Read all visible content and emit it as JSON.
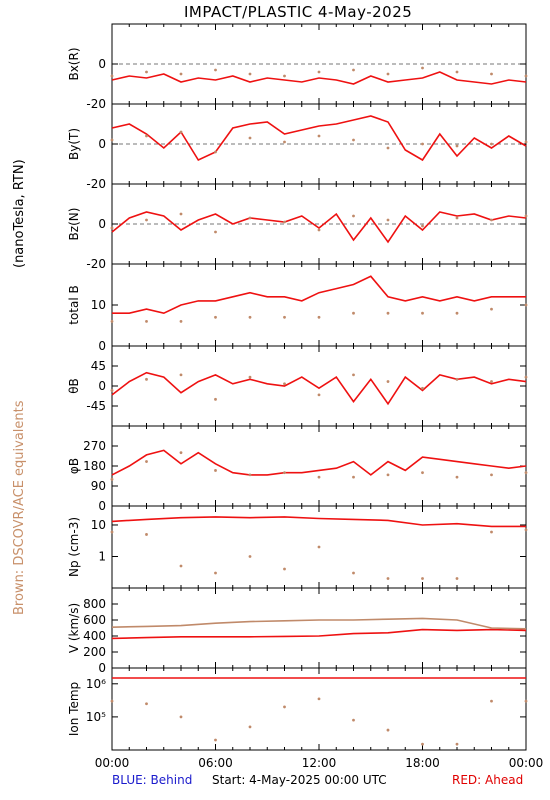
{
  "title": "IMPACT/PLASTIC     4-May-2025",
  "left_axis_label": "(nanoTesla, RTN)",
  "brown_label": "Brown: DSCOVR/ACE equivalents",
  "footer": {
    "behind": "BLUE: Behind",
    "start": "Start:   4-May-2025 00:00 UTC",
    "ahead": "RED: Ahead"
  },
  "colors": {
    "ahead": "#ee1111",
    "brown": "#c08a6a",
    "axis": "#000000",
    "dash": "#777777"
  },
  "chart_data": {
    "type": "line",
    "x_ticks": [
      "00:00",
      "06:00",
      "12:00",
      "18:00",
      "00:00"
    ],
    "panels": [
      {
        "id": "bx",
        "ylabel": "Bx(R)",
        "ylim": [
          -20,
          20
        ],
        "ticks": [
          "0",
          "-20"
        ],
        "tick_values": [
          0,
          -20
        ],
        "zero_line": true,
        "series": [
          {
            "color": "ahead",
            "style": "line",
            "x": [
              0,
              1,
              2,
              3,
              4,
              5,
              6,
              7,
              8,
              9,
              10,
              11,
              12,
              13,
              14,
              15,
              16,
              17,
              18,
              19,
              20,
              21,
              22,
              23,
              24
            ],
            "y": [
              -8,
              -6,
              -7,
              -5,
              -9,
              -7,
              -8,
              -6,
              -9,
              -7,
              -8,
              -9,
              -7,
              -8,
              -10,
              -6,
              -9,
              -8,
              -7,
              -4,
              -8,
              -9,
              -10,
              -8,
              -9
            ]
          },
          {
            "color": "brown",
            "style": "dots",
            "x": [
              0,
              2,
              4,
              6,
              8,
              10,
              12,
              14,
              16,
              18,
              20,
              22,
              24
            ],
            "y": [
              -6,
              -4,
              -5,
              -3,
              -5,
              -6,
              -4,
              -3,
              -5,
              -2,
              -4,
              -5,
              -6
            ]
          }
        ]
      },
      {
        "id": "by",
        "ylabel": "By(T)",
        "ylim": [
          -20,
          20
        ],
        "ticks": [
          "0",
          "-20"
        ],
        "tick_values": [
          0,
          -20
        ],
        "zero_line": true,
        "series": [
          {
            "color": "ahead",
            "style": "line",
            "x": [
              0,
              1,
              2,
              3,
              4,
              5,
              6,
              7,
              8,
              9,
              10,
              11,
              12,
              13,
              14,
              15,
              16,
              17,
              18,
              19,
              20,
              21,
              22,
              23,
              24
            ],
            "y": [
              8,
              10,
              5,
              -2,
              6,
              -8,
              -4,
              8,
              10,
              11,
              5,
              7,
              9,
              10,
              12,
              14,
              11,
              -3,
              -8,
              5,
              -6,
              3,
              -2,
              4,
              -1
            ]
          },
          {
            "color": "brown",
            "style": "dots",
            "x": [
              0,
              2,
              4,
              6,
              8,
              10,
              12,
              14,
              16,
              18,
              20,
              22,
              24
            ],
            "y": [
              2,
              4,
              6,
              -4,
              3,
              1,
              4,
              2,
              -2,
              0,
              -1,
              0,
              1
            ]
          }
        ]
      },
      {
        "id": "bz",
        "ylabel": "Bz(N)",
        "ylim": [
          -20,
          20
        ],
        "ticks": [
          "0",
          "-20"
        ],
        "tick_values": [
          0,
          -20
        ],
        "zero_line": true,
        "series": [
          {
            "color": "ahead",
            "style": "line",
            "x": [
              0,
              1,
              2,
              3,
              4,
              5,
              6,
              7,
              8,
              9,
              10,
              11,
              12,
              13,
              14,
              15,
              16,
              17,
              18,
              19,
              20,
              21,
              22,
              23,
              24
            ],
            "y": [
              -4,
              3,
              6,
              4,
              -3,
              2,
              5,
              0,
              3,
              2,
              1,
              4,
              -2,
              5,
              -8,
              3,
              -9,
              4,
              -3,
              6,
              4,
              5,
              2,
              4,
              3
            ]
          },
          {
            "color": "brown",
            "style": "dots",
            "x": [
              0,
              2,
              4,
              6,
              8,
              10,
              12,
              14,
              16,
              18,
              20,
              22,
              24
            ],
            "y": [
              -2,
              2,
              5,
              -4,
              3,
              1,
              -3,
              4,
              2,
              -1,
              3,
              2,
              4
            ]
          }
        ]
      },
      {
        "id": "bt",
        "ylabel": "total B",
        "ylim": [
          0,
          20
        ],
        "ticks": [
          "10",
          "0"
        ],
        "tick_values": [
          10,
          0
        ],
        "zero_line": false,
        "series": [
          {
            "color": "ahead",
            "style": "line",
            "x": [
              0,
              1,
              2,
              3,
              4,
              5,
              6,
              7,
              8,
              9,
              10,
              11,
              12,
              13,
              14,
              15,
              16,
              17,
              18,
              19,
              20,
              21,
              22,
              23,
              24
            ],
            "y": [
              8,
              8,
              9,
              8,
              10,
              11,
              11,
              12,
              13,
              12,
              12,
              11,
              13,
              14,
              15,
              17,
              12,
              11,
              12,
              11,
              12,
              11,
              12,
              12,
              12
            ]
          },
          {
            "color": "brown",
            "style": "dots",
            "x": [
              0,
              2,
              4,
              6,
              8,
              10,
              12,
              14,
              16,
              18,
              20,
              22,
              24
            ],
            "y": [
              6,
              6,
              6,
              7,
              7,
              7,
              7,
              8,
              8,
              8,
              8,
              9,
              10
            ]
          }
        ]
      },
      {
        "id": "theta",
        "ylabel": "θB",
        "ylim": [
          -90,
          90
        ],
        "ticks": [
          "45",
          "0",
          "-45"
        ],
        "tick_values": [
          45,
          0,
          -45
        ],
        "zero_line": false,
        "series": [
          {
            "color": "ahead",
            "style": "line",
            "x": [
              0,
              1,
              2,
              3,
              4,
              5,
              6,
              7,
              8,
              9,
              10,
              11,
              12,
              13,
              14,
              15,
              16,
              17,
              18,
              19,
              20,
              21,
              22,
              23,
              24
            ],
            "y": [
              -20,
              10,
              30,
              20,
              -15,
              10,
              25,
              5,
              15,
              5,
              0,
              20,
              -5,
              20,
              -35,
              15,
              -40,
              20,
              -10,
              25,
              15,
              20,
              5,
              15,
              10
            ]
          },
          {
            "color": "brown",
            "style": "dots",
            "x": [
              0,
              2,
              4,
              6,
              8,
              10,
              12,
              14,
              16,
              18,
              20,
              22,
              24
            ],
            "y": [
              -10,
              15,
              25,
              -30,
              20,
              5,
              -20,
              25,
              10,
              -5,
              15,
              10,
              20
            ]
          }
        ]
      },
      {
        "id": "phi",
        "ylabel": "φB",
        "ylim": [
          0,
          360
        ],
        "ticks": [
          "270",
          "180",
          "90",
          "0"
        ],
        "tick_values": [
          270,
          180,
          90,
          0
        ],
        "zero_line": false,
        "series": [
          {
            "color": "ahead",
            "style": "line",
            "x": [
              0,
              1,
              2,
              3,
              4,
              5,
              6,
              7,
              8,
              9,
              10,
              11,
              12,
              13,
              14,
              15,
              16,
              17,
              18,
              19,
              20,
              21,
              22,
              23,
              24
            ],
            "y": [
              140,
              180,
              230,
              250,
              190,
              240,
              190,
              150,
              140,
              140,
              150,
              150,
              160,
              170,
              200,
              140,
              200,
              160,
              220,
              210,
              200,
              190,
              180,
              170,
              180
            ]
          },
          {
            "color": "brown",
            "style": "dots",
            "x": [
              0,
              2,
              4,
              6,
              8,
              10,
              12,
              14,
              16,
              18,
              20,
              22,
              24
            ],
            "y": [
              120,
              200,
              240,
              160,
              140,
              150,
              130,
              130,
              140,
              150,
              130,
              140,
              150
            ]
          }
        ]
      },
      {
        "id": "np",
        "ylabel": "Np (cm-3)",
        "ylim": [
          0.1,
          40
        ],
        "log": true,
        "ticks": [
          "10",
          "1"
        ],
        "tick_values": [
          10,
          1
        ],
        "zero_line": false,
        "series": [
          {
            "color": "ahead",
            "style": "line",
            "x": [
              0,
              2,
              4,
              6,
              8,
              10,
              12,
              14,
              16,
              18,
              20,
              22,
              24
            ],
            "y": [
              13,
              15,
              17,
              18,
              17,
              18,
              16,
              15,
              14,
              10,
              11,
              9,
              9
            ]
          },
          {
            "color": "brown",
            "style": "dots",
            "x": [
              0,
              2,
              4,
              6,
              8,
              10,
              12,
              14,
              16,
              18,
              20,
              22,
              24
            ],
            "y": [
              6,
              5,
              0.5,
              0.3,
              1,
              0.4,
              2,
              0.3,
              0.2,
              0.2,
              0.2,
              6,
              7
            ]
          }
        ]
      },
      {
        "id": "v",
        "ylabel": "V (km/s)",
        "ylim": [
          0,
          1000
        ],
        "ticks": [
          "800",
          "600",
          "400",
          "200",
          "0"
        ],
        "tick_values": [
          800,
          600,
          400,
          200,
          0
        ],
        "zero_line": false,
        "series": [
          {
            "color": "ahead",
            "style": "line",
            "x": [
              0,
              2,
              4,
              6,
              8,
              10,
              12,
              14,
              16,
              18,
              20,
              22,
              24
            ],
            "y": [
              370,
              380,
              390,
              390,
              390,
              395,
              400,
              430,
              440,
              480,
              470,
              480,
              470
            ]
          },
          {
            "color": "brown",
            "style": "line",
            "x": [
              0,
              2,
              4,
              6,
              8,
              10,
              12,
              14,
              16,
              18,
              20,
              22,
              24
            ],
            "y": [
              510,
              520,
              530,
              560,
              580,
              590,
              600,
              600,
              610,
              620,
              600,
              500,
              490
            ]
          }
        ]
      },
      {
        "id": "temp",
        "ylabel": "Ion Temp",
        "ylim": [
          10000,
          3000000
        ],
        "log": true,
        "ticks": [
          "10⁶",
          "10⁵"
        ],
        "tick_values": [
          1000000,
          100000
        ],
        "zero_line": false,
        "series": [
          {
            "color": "ahead",
            "style": "line",
            "x": [
              0,
              24
            ],
            "y": [
              1500000,
              1500000
            ]
          },
          {
            "color": "brown",
            "style": "dots",
            "x": [
              0,
              2,
              4,
              6,
              8,
              10,
              12,
              14,
              16,
              18,
              20,
              22,
              24
            ],
            "y": [
              300000,
              250000,
              100000,
              20000,
              50000,
              200000,
              350000,
              80000,
              40000,
              15000,
              15000,
              300000,
              300000
            ]
          }
        ]
      }
    ]
  }
}
